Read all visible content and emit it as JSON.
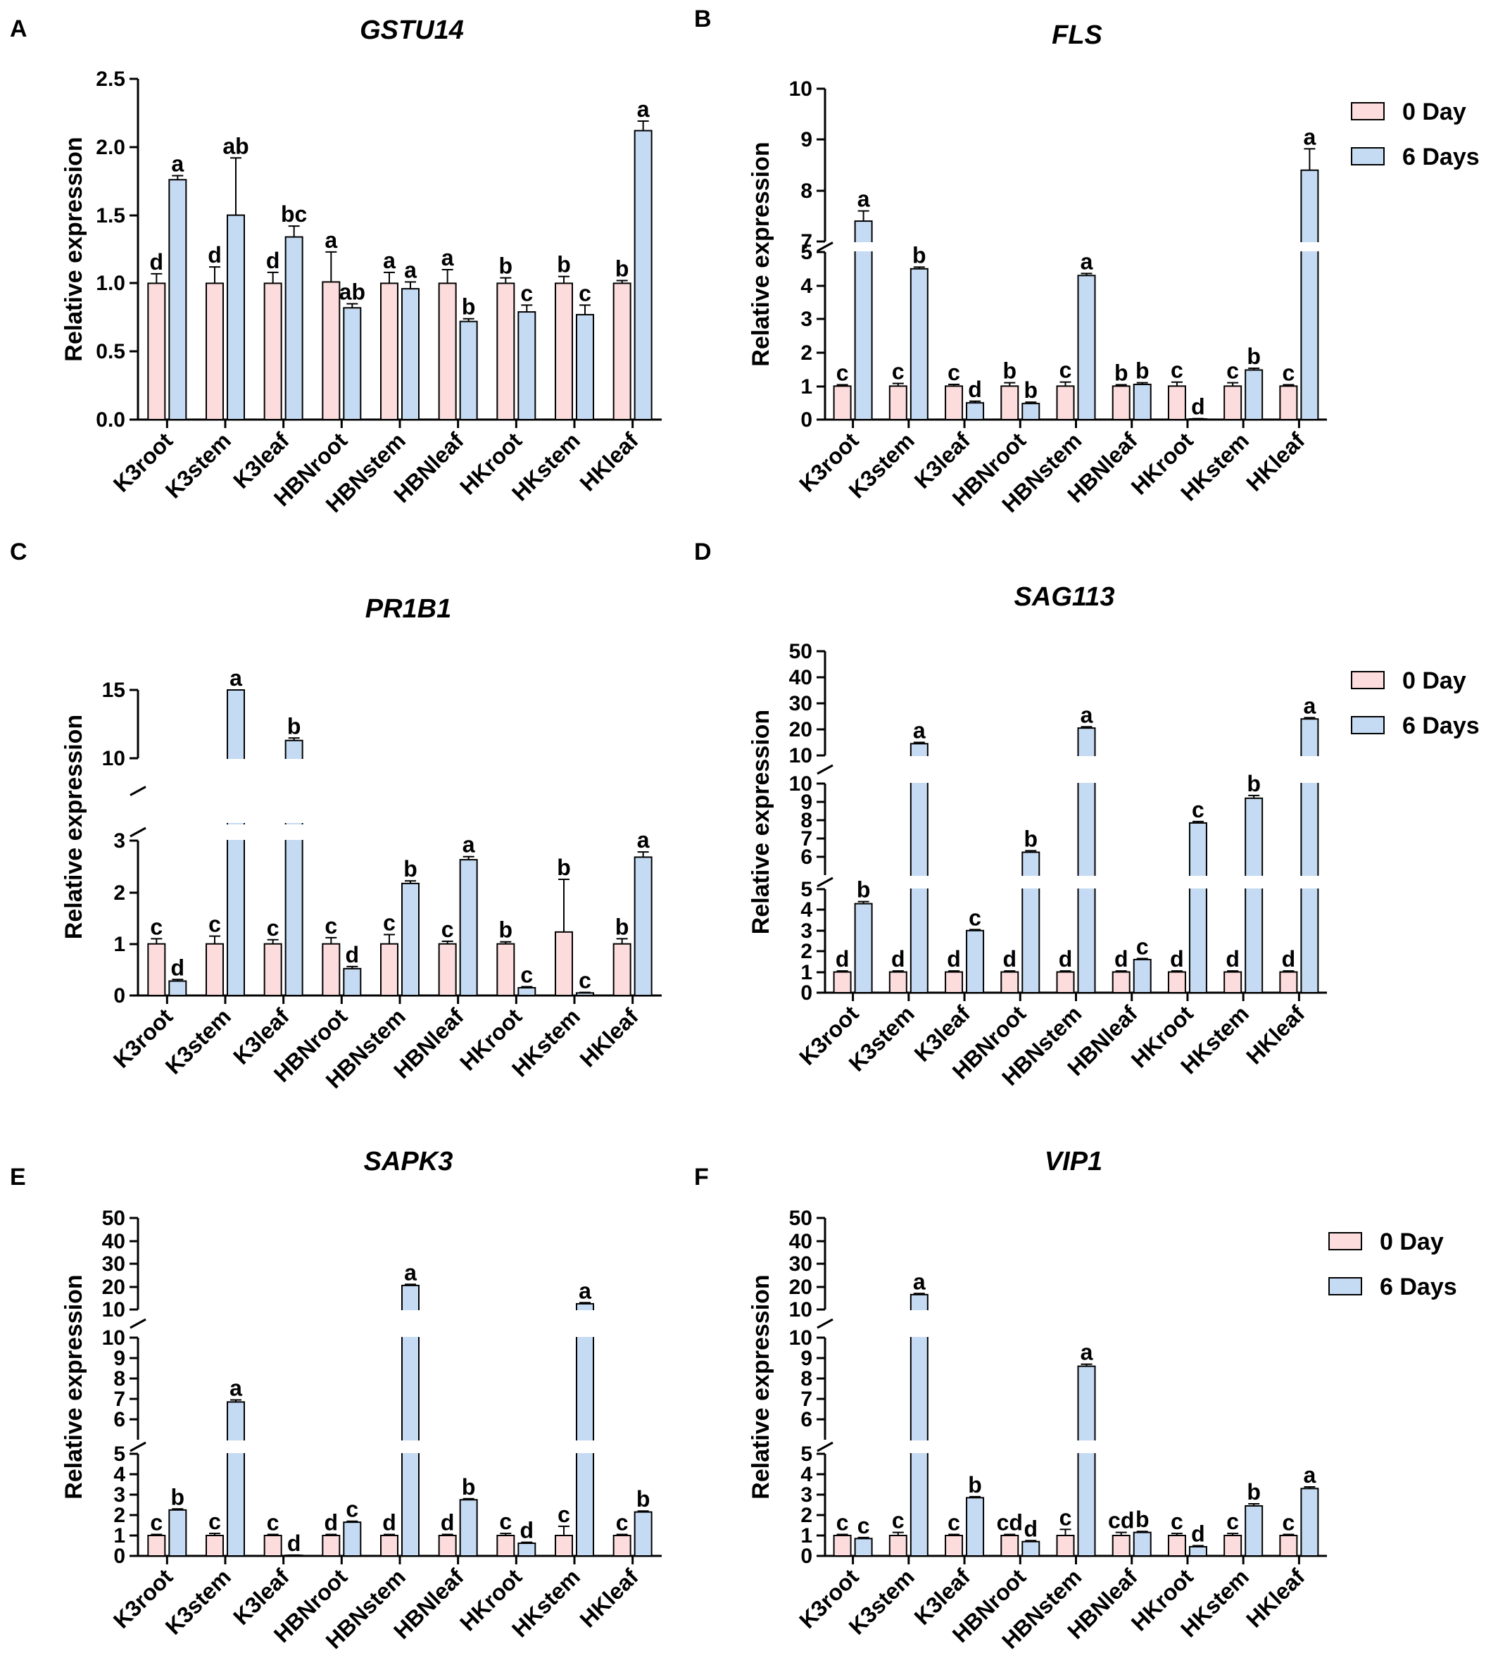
{
  "colors": {
    "day0": "#fcdcdc",
    "day6": "#c5daf3",
    "stroke": "#000000"
  },
  "legend": {
    "day0": "0 Day",
    "day6": "6 Days"
  },
  "categories": [
    "K3root",
    "K3stem",
    "K3leaf",
    "HBNroot",
    "HBNstem",
    "HBNleaf",
    "HKroot",
    "HKstem",
    "HKleaf"
  ],
  "ylabel": "Relative expression",
  "chart_data": [
    {
      "panel": "A",
      "title": "GSTU14",
      "type": "bar",
      "categories": [
        "K3root",
        "K3stem",
        "K3leaf",
        "HBNroot",
        "HBNstem",
        "HBNleaf",
        "HKroot",
        "HKstem",
        "HKleaf"
      ],
      "ylabel": "Relative expression",
      "yticks": [
        "0.0",
        "0.5",
        "1.0",
        "1.5",
        "2.0",
        "2.5"
      ],
      "series": [
        {
          "name": "0 Day",
          "values": [
            1.0,
            1.0,
            1.0,
            1.01,
            1.0,
            1.0,
            1.0,
            1.0,
            1.0
          ],
          "errors": [
            0.07,
            0.12,
            0.08,
            0.22,
            0.08,
            0.1,
            0.04,
            0.05,
            0.02
          ],
          "letters": [
            "d",
            "d",
            "d",
            "a",
            "a",
            "a",
            "b",
            "b",
            "b"
          ]
        },
        {
          "name": "6 Days",
          "values": [
            1.76,
            1.5,
            1.34,
            0.82,
            0.96,
            0.72,
            0.79,
            0.77,
            2.12
          ],
          "errors": [
            0.03,
            0.42,
            0.08,
            0.03,
            0.05,
            0.02,
            0.05,
            0.07,
            0.07
          ],
          "letters": [
            "a",
            "ab",
            "bc",
            "ab",
            "a",
            "b",
            "c",
            "c",
            "a"
          ]
        }
      ]
    },
    {
      "panel": "B",
      "title": "FLS",
      "type": "bar",
      "legend": true,
      "categories": [
        "K3root",
        "K3stem",
        "K3leaf",
        "HBNroot",
        "HBNstem",
        "HBNleaf",
        "HKroot",
        "HKstem",
        "HKleaf"
      ],
      "ylabel": "Relative expression",
      "yticks": [
        "0",
        "1",
        "2",
        "3",
        "4",
        "5",
        "7",
        "8",
        "9",
        "10"
      ],
      "series": [
        {
          "name": "0 Day",
          "values": [
            1.0,
            1.0,
            1.0,
            1.0,
            1.0,
            1.0,
            1.0,
            1.0,
            1.0
          ],
          "errors": [
            0.04,
            0.08,
            0.05,
            0.1,
            0.12,
            0.04,
            0.12,
            0.1,
            0.04
          ],
          "letters": [
            "c",
            "c",
            "c",
            "b",
            "c",
            "b",
            "c",
            "c",
            "c"
          ]
        },
        {
          "name": "6 Days",
          "values": [
            7.4,
            4.5,
            0.5,
            0.48,
            4.3,
            1.05,
            0.02,
            1.48,
            8.4
          ],
          "errors": [
            0.2,
            0.05,
            0.05,
            0.04,
            0.06,
            0.05,
            0.01,
            0.05,
            0.42
          ],
          "letters": [
            "a",
            "b",
            "d",
            "b",
            "a",
            "b",
            "d",
            "b",
            "a"
          ]
        }
      ]
    },
    {
      "panel": "C",
      "title": "PR1B1",
      "type": "bar",
      "categories": [
        "K3root",
        "K3stem",
        "K3leaf",
        "HBNroot",
        "HBNstem",
        "HBNleaf",
        "HKroot",
        "HKstem",
        "HKleaf"
      ],
      "ylabel": "Relative expression",
      "yticks": [
        "0",
        "1",
        "2",
        "3",
        "10",
        "15"
      ],
      "series": [
        {
          "name": "0 Day",
          "values": [
            1.0,
            1.0,
            1.0,
            1.0,
            1.0,
            1.0,
            1.0,
            1.23,
            1.0
          ],
          "errors": [
            0.1,
            0.15,
            0.08,
            0.12,
            0.18,
            0.05,
            0.04,
            1.02,
            0.1
          ],
          "letters": [
            "c",
            "c",
            "c",
            "c",
            "c",
            "c",
            "b",
            "b",
            "b"
          ]
        },
        {
          "name": "6 Days",
          "values": [
            0.28,
            15.3,
            11.3,
            0.52,
            2.17,
            2.63,
            0.15,
            0.05,
            2.68
          ],
          "errors": [
            0.03,
            0.2,
            0.18,
            0.04,
            0.05,
            0.06,
            0.02,
            0.01,
            0.1
          ],
          "letters": [
            "d",
            "a",
            "b",
            "d",
            "b",
            "a",
            "c",
            "c",
            "a"
          ]
        }
      ]
    },
    {
      "panel": "D",
      "title": "SAG113",
      "type": "bar",
      "legend": true,
      "categories": [
        "K3root",
        "K3stem",
        "K3leaf",
        "HBNroot",
        "HBNstem",
        "HBNleaf",
        "HKroot",
        "HKstem",
        "HKleaf"
      ],
      "ylabel": "Relative expression",
      "yticks": [
        "0",
        "1",
        "2",
        "3",
        "4",
        "5",
        "6",
        "7",
        "8",
        "9",
        "10",
        "20",
        "30",
        "40",
        "50"
      ],
      "series": [
        {
          "name": "0 Day",
          "values": [
            1.0,
            1.0,
            1.0,
            1.0,
            1.0,
            1.0,
            1.0,
            1.0,
            1.0
          ],
          "errors": [
            0.05,
            0.05,
            0.05,
            0.05,
            0.05,
            0.05,
            0.05,
            0.05,
            0.05
          ],
          "letters": [
            "d",
            "d",
            "d",
            "d",
            "d",
            "d",
            "d",
            "d",
            "d"
          ]
        },
        {
          "name": "6 Days",
          "values": [
            4.3,
            14.5,
            3.0,
            6.25,
            20.5,
            1.6,
            7.85,
            9.2,
            24.0
          ],
          "errors": [
            0.1,
            0.5,
            0.05,
            0.08,
            0.5,
            0.05,
            0.08,
            0.15,
            0.5
          ],
          "letters": [
            "b",
            "a",
            "c",
            "b",
            "a",
            "c",
            "c",
            "b",
            "a"
          ]
        }
      ]
    },
    {
      "panel": "E",
      "title": "SAPK3",
      "type": "bar",
      "categories": [
        "K3root",
        "K3stem",
        "K3leaf",
        "HBNroot",
        "HBNstem",
        "HBNleaf",
        "HKroot",
        "HKstem",
        "HKleaf"
      ],
      "ylabel": "Relative expression",
      "yticks": [
        "0",
        "1",
        "2",
        "3",
        "4",
        "5",
        "6",
        "7",
        "8",
        "9",
        "10",
        "20",
        "30",
        "40",
        "50"
      ],
      "series": [
        {
          "name": "0 Day",
          "values": [
            1.0,
            1.0,
            1.0,
            1.0,
            1.0,
            1.0,
            1.0,
            1.0,
            1.0
          ],
          "errors": [
            0.05,
            0.1,
            0.05,
            0.05,
            0.05,
            0.05,
            0.1,
            0.45,
            0.05
          ],
          "letters": [
            "c",
            "c",
            "c",
            "d",
            "d",
            "d",
            "c",
            "c",
            "c"
          ]
        },
        {
          "name": "6 Days",
          "values": [
            2.25,
            6.85,
            0.03,
            1.65,
            20.5,
            2.75,
            0.62,
            12.5,
            2.15
          ],
          "errors": [
            0.05,
            0.1,
            0.01,
            0.05,
            0.5,
            0.05,
            0.05,
            0.5,
            0.05
          ],
          "letters": [
            "b",
            "a",
            "d",
            "c",
            "a",
            "b",
            "d",
            "a",
            "b"
          ]
        }
      ]
    },
    {
      "panel": "F",
      "title": "VIP1",
      "type": "bar",
      "legend": true,
      "categories": [
        "K3root",
        "K3stem",
        "K3leaf",
        "HBNroot",
        "HBNstem",
        "HBNleaf",
        "HKroot",
        "HKstem",
        "HKleaf"
      ],
      "ylabel": "Relative expression",
      "yticks": [
        "0",
        "1",
        "2",
        "3",
        "4",
        "5",
        "6",
        "7",
        "8",
        "9",
        "10",
        "20",
        "30",
        "40",
        "50"
      ],
      "series": [
        {
          "name": "0 Day",
          "values": [
            1.0,
            1.0,
            1.0,
            1.0,
            1.0,
            1.0,
            1.0,
            1.0,
            1.0
          ],
          "errors": [
            0.05,
            0.15,
            0.05,
            0.05,
            0.3,
            0.15,
            0.1,
            0.1,
            0.05
          ],
          "letters": [
            "c",
            "c",
            "c",
            "cd",
            "c",
            "cd",
            "c",
            "c",
            "c"
          ]
        },
        {
          "name": "6 Days",
          "values": [
            0.85,
            16.5,
            2.85,
            0.7,
            8.6,
            1.15,
            0.45,
            2.45,
            3.3
          ],
          "errors": [
            0.05,
            0.5,
            0.05,
            0.05,
            0.1,
            0.05,
            0.05,
            0.1,
            0.08
          ],
          "letters": [
            "c",
            "a",
            "b",
            "d",
            "a",
            "b",
            "d",
            "b",
            "a"
          ]
        }
      ]
    }
  ]
}
